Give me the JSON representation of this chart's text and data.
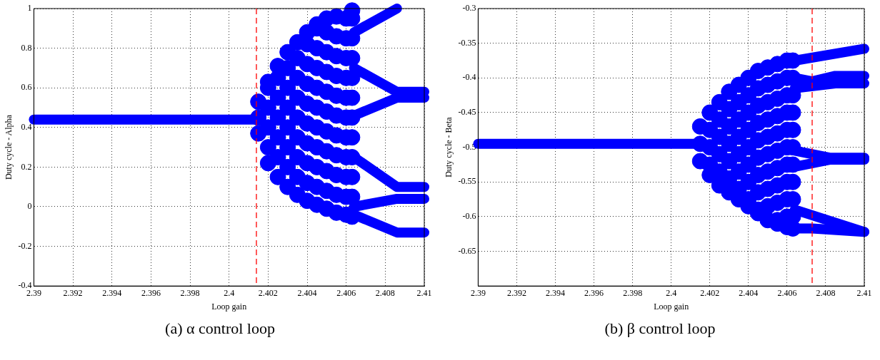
{
  "chart_data": [
    {
      "type": "scatter",
      "xlabel": "Loop gain",
      "ylabel": "Duty cycle - Alpha",
      "annotations": [
        "(a) α control loop"
      ],
      "xlim": [
        2.39,
        2.41
      ],
      "ylim": [
        -0.4,
        1
      ],
      "xticks": [
        2.39,
        2.392,
        2.394,
        2.396,
        2.398,
        2.4,
        2.402,
        2.404,
        2.406,
        2.408,
        2.41
      ],
      "yticks": [
        -0.4,
        -0.2,
        0,
        0.2,
        0.4,
        0.6,
        0.8,
        1
      ],
      "grid": true,
      "marker": "circle",
      "ref_lines": [
        {
          "axis": "x",
          "value": 2.4014,
          "color": "#ff0000",
          "line_style": "dashed"
        }
      ],
      "series": [
        {
          "type": "scatter",
          "color": "#0000ff",
          "x": [
            2.4015,
            2.4015,
            2.4015,
            2.402,
            2.402,
            2.402,
            2.402,
            2.402,
            2.402,
            2.4025,
            2.4025,
            2.4025,
            2.4025,
            2.4025,
            2.4025,
            2.4025,
            2.403,
            2.403,
            2.403,
            2.403,
            2.403,
            2.403,
            2.403,
            2.403,
            2.4035,
            2.4035,
            2.4035,
            2.4035,
            2.4035,
            2.4035,
            2.4035,
            2.4035,
            2.4035,
            2.404,
            2.404,
            2.404,
            2.404,
            2.404,
            2.404,
            2.404,
            2.404,
            2.404,
            2.404,
            2.4045,
            2.4045,
            2.4045,
            2.4045,
            2.4045,
            2.4045,
            2.4045,
            2.4045,
            2.4045,
            2.4045,
            2.4045,
            2.405,
            2.405,
            2.405,
            2.405,
            2.405,
            2.405,
            2.405,
            2.405,
            2.405,
            2.405,
            2.405,
            2.4055,
            2.4055,
            2.4055,
            2.4055,
            2.4055,
            2.4055,
            2.4055,
            2.4055,
            2.4055,
            2.4055,
            2.4055,
            2.406,
            2.406,
            2.406,
            2.406,
            2.406,
            2.406,
            2.406,
            2.406,
            2.406,
            2.406,
            2.406,
            2.4063,
            2.4063,
            2.4063,
            2.4063,
            2.4063,
            2.4063,
            2.4063,
            2.4063,
            2.4063,
            2.4063,
            2.4063,
            2.4063
          ],
          "values": [
            0.37,
            0.45,
            0.53,
            0.22,
            0.3,
            0.4,
            0.5,
            0.6,
            0.63,
            0.15,
            0.25,
            0.35,
            0.45,
            0.55,
            0.65,
            0.71,
            0.1,
            0.2,
            0.3,
            0.4,
            0.5,
            0.6,
            0.7,
            0.78,
            0.06,
            0.15,
            0.25,
            0.35,
            0.45,
            0.55,
            0.65,
            0.75,
            0.83,
            0.03,
            0.12,
            0.22,
            0.32,
            0.42,
            0.52,
            0.62,
            0.72,
            0.82,
            0.88,
            0.01,
            0.1,
            0.2,
            0.3,
            0.4,
            0.5,
            0.6,
            0.7,
            0.8,
            0.9,
            0.92,
            -0.01,
            0.08,
            0.18,
            0.28,
            0.38,
            0.48,
            0.58,
            0.68,
            0.78,
            0.88,
            0.95,
            -0.03,
            0.06,
            0.16,
            0.26,
            0.36,
            0.46,
            0.56,
            0.66,
            0.76,
            0.86,
            0.96,
            -0.04,
            0.05,
            0.15,
            0.25,
            0.35,
            0.45,
            0.55,
            0.65,
            0.75,
            0.85,
            0.95,
            -0.05,
            0.05,
            0.15,
            0.25,
            0.35,
            0.45,
            0.55,
            0.65,
            0.75,
            0.85,
            0.95,
            0.99
          ]
        },
        {
          "type": "line",
          "marker": "none",
          "color": "#0000ff",
          "x": [
            2.39,
            2.4014
          ],
          "values": [
            0.44,
            0.44
          ]
        },
        {
          "type": "line",
          "marker": "none",
          "color": "#0000ff",
          "x": [
            2.4064,
            2.4086
          ],
          "values": [
            0.88,
            1.0
          ]
        },
        {
          "type": "line",
          "marker": "none",
          "color": "#0000ff",
          "x": [
            2.4064,
            2.4086,
            2.41
          ],
          "values": [
            0.7,
            0.58,
            0.58
          ]
        },
        {
          "type": "line",
          "marker": "none",
          "color": "#0000ff",
          "x": [
            2.4064,
            2.4086,
            2.41
          ],
          "values": [
            0.46,
            0.55,
            0.55
          ]
        },
        {
          "type": "line",
          "marker": "none",
          "color": "#0000ff",
          "x": [
            2.4064,
            2.4086,
            2.41
          ],
          "values": [
            0.25,
            0.1,
            0.1
          ]
        },
        {
          "type": "line",
          "marker": "none",
          "color": "#0000ff",
          "x": [
            2.4064,
            2.4086,
            2.41
          ],
          "values": [
            0.0,
            0.04,
            0.04
          ]
        },
        {
          "type": "line",
          "marker": "none",
          "color": "#0000ff",
          "x": [
            2.4064,
            2.4086,
            2.41
          ],
          "values": [
            -0.04,
            -0.13,
            -0.13
          ]
        }
      ]
    },
    {
      "type": "scatter",
      "xlabel": "Loop gain",
      "ylabel": "Duty cycle - Beta",
      "annotations": [
        "(b) β control loop"
      ],
      "xlim": [
        2.39,
        2.41
      ],
      "ylim": [
        -0.7,
        -0.3
      ],
      "xticks": [
        2.39,
        2.392,
        2.394,
        2.396,
        2.398,
        2.4,
        2.402,
        2.404,
        2.406,
        2.408,
        2.41
      ],
      "yticks": [
        -0.3,
        -0.35,
        -0.4,
        -0.45,
        -0.5,
        -0.55,
        -0.6,
        -0.65
      ],
      "grid": true,
      "marker": "circle",
      "ref_lines": [
        {
          "axis": "x",
          "value": 2.4073,
          "color": "#ff0000",
          "line_style": "dashed"
        }
      ],
      "series": [
        {
          "type": "scatter",
          "color": "#0000ff",
          "x": [
            2.4015,
            2.4015,
            2.4015,
            2.402,
            2.402,
            2.402,
            2.402,
            2.402,
            2.4025,
            2.4025,
            2.4025,
            2.4025,
            2.4025,
            2.4025,
            2.403,
            2.403,
            2.403,
            2.403,
            2.403,
            2.403,
            2.403,
            2.4035,
            2.4035,
            2.4035,
            2.4035,
            2.4035,
            2.4035,
            2.4035,
            2.4035,
            2.404,
            2.404,
            2.404,
            2.404,
            2.404,
            2.404,
            2.404,
            2.404,
            2.404,
            2.4045,
            2.4045,
            2.4045,
            2.4045,
            2.4045,
            2.4045,
            2.4045,
            2.4045,
            2.4045,
            2.4045,
            2.405,
            2.405,
            2.405,
            2.405,
            2.405,
            2.405,
            2.405,
            2.405,
            2.405,
            2.405,
            2.4055,
            2.4055,
            2.4055,
            2.4055,
            2.4055,
            2.4055,
            2.4055,
            2.4055,
            2.4055,
            2.4055,
            2.4055,
            2.406,
            2.406,
            2.406,
            2.406,
            2.406,
            2.406,
            2.406,
            2.406,
            2.406,
            2.406,
            2.406,
            2.4063,
            2.4063,
            2.4063,
            2.4063,
            2.4063,
            2.4063,
            2.4063,
            2.4063,
            2.4063,
            2.4063,
            2.4063
          ],
          "values": [
            -0.47,
            -0.495,
            -0.52,
            -0.45,
            -0.475,
            -0.5,
            -0.525,
            -0.54,
            -0.435,
            -0.46,
            -0.485,
            -0.51,
            -0.535,
            -0.555,
            -0.42,
            -0.445,
            -0.47,
            -0.495,
            -0.52,
            -0.545,
            -0.565,
            -0.41,
            -0.435,
            -0.46,
            -0.485,
            -0.51,
            -0.535,
            -0.56,
            -0.575,
            -0.4,
            -0.425,
            -0.45,
            -0.475,
            -0.5,
            -0.525,
            -0.55,
            -0.575,
            -0.585,
            -0.39,
            -0.415,
            -0.44,
            -0.465,
            -0.49,
            -0.515,
            -0.54,
            -0.565,
            -0.59,
            -0.595,
            -0.385,
            -0.41,
            -0.435,
            -0.46,
            -0.485,
            -0.51,
            -0.535,
            -0.56,
            -0.585,
            -0.605,
            -0.38,
            -0.405,
            -0.43,
            -0.455,
            -0.48,
            -0.505,
            -0.53,
            -0.555,
            -0.58,
            -0.605,
            -0.61,
            -0.375,
            -0.4,
            -0.425,
            -0.45,
            -0.475,
            -0.5,
            -0.525,
            -0.55,
            -0.575,
            -0.6,
            -0.615,
            -0.375,
            -0.4,
            -0.425,
            -0.45,
            -0.475,
            -0.5,
            -0.525,
            -0.55,
            -0.575,
            -0.6,
            -0.617
          ]
        },
        {
          "type": "line",
          "marker": "none",
          "color": "#0000ff",
          "x": [
            2.39,
            2.4015
          ],
          "values": [
            -0.495,
            -0.495
          ]
        },
        {
          "type": "line",
          "marker": "none",
          "color": "#0000ff",
          "x": [
            2.4064,
            2.41
          ],
          "values": [
            -0.375,
            -0.358
          ]
        },
        {
          "type": "line",
          "marker": "none",
          "color": "#0000ff",
          "x": [
            2.4064,
            2.4073,
            2.4085,
            2.41
          ],
          "values": [
            -0.4,
            -0.405,
            -0.397,
            -0.397
          ]
        },
        {
          "type": "line",
          "marker": "none",
          "color": "#0000ff",
          "x": [
            2.4064,
            2.4085,
            2.41
          ],
          "values": [
            -0.415,
            -0.408,
            -0.408
          ]
        },
        {
          "type": "line",
          "marker": "none",
          "color": "#0000ff",
          "x": [
            2.4064,
            2.4082,
            2.41
          ],
          "values": [
            -0.505,
            -0.515,
            -0.515
          ]
        },
        {
          "type": "line",
          "marker": "none",
          "color": "#0000ff",
          "x": [
            2.4064,
            2.4082,
            2.41
          ],
          "values": [
            -0.528,
            -0.518,
            -0.518
          ]
        },
        {
          "type": "line",
          "marker": "none",
          "color": "#0000ff",
          "x": [
            2.4064,
            2.41
          ],
          "values": [
            -0.59,
            -0.622
          ]
        },
        {
          "type": "line",
          "marker": "none",
          "color": "#0000ff",
          "x": [
            2.4064,
            2.4073,
            2.41
          ],
          "values": [
            -0.617,
            -0.617,
            -0.622
          ]
        }
      ]
    }
  ]
}
